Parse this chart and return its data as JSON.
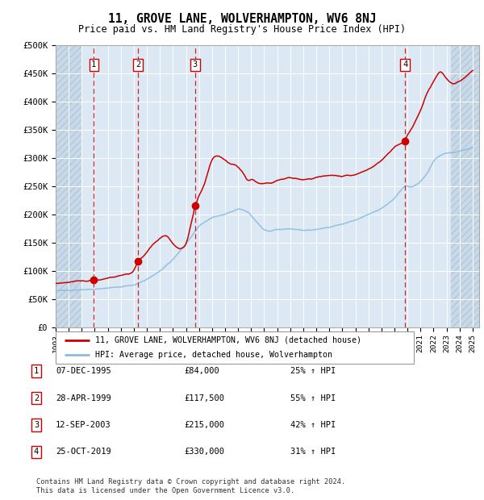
{
  "title": "11, GROVE LANE, WOLVERHAMPTON, WV6 8NJ",
  "subtitle": "Price paid vs. HM Land Registry's House Price Index (HPI)",
  "ylim": [
    0,
    500000
  ],
  "yticks": [
    0,
    50000,
    100000,
    150000,
    200000,
    250000,
    300000,
    350000,
    400000,
    450000,
    500000
  ],
  "ytick_labels": [
    "£0",
    "£50K",
    "£100K",
    "£150K",
    "£200K",
    "£250K",
    "£300K",
    "£350K",
    "£400K",
    "£450K",
    "£500K"
  ],
  "plot_bg_color": "#dce9f5",
  "hatch_bg_color": "#c8d9ea",
  "grid_color": "#ffffff",
  "sale_dates_str": [
    "1995-12-07",
    "1999-04-28",
    "2003-09-12",
    "2019-10-25"
  ],
  "sale_years": [
    1995.93,
    1999.32,
    2003.7,
    2019.81
  ],
  "sale_prices": [
    84000,
    117500,
    215000,
    330000
  ],
  "sale_labels": [
    "1",
    "2",
    "3",
    "4"
  ],
  "legend_property": "11, GROVE LANE, WOLVERHAMPTON, WV6 8NJ (detached house)",
  "legend_hpi": "HPI: Average price, detached house, Wolverhampton",
  "property_color": "#cc0000",
  "hpi_color": "#8bbcde",
  "xlim_start": 1993.0,
  "xlim_end": 2025.5,
  "hatch_left_end": 1995.0,
  "hatch_right_start": 2023.33,
  "footer": "Contains HM Land Registry data © Crown copyright and database right 2024.\nThis data is licensed under the Open Government Licence v3.0.",
  "table_entries": [
    [
      "1",
      "07-DEC-1995",
      "£84,000",
      "25% ↑ HPI"
    ],
    [
      "2",
      "28-APR-1999",
      "£117,500",
      "55% ↑ HPI"
    ],
    [
      "3",
      "12-SEP-2003",
      "£215,000",
      "42% ↑ HPI"
    ],
    [
      "4",
      "25-OCT-2019",
      "£330,000",
      "31% ↑ HPI"
    ]
  ],
  "hpi_waypoints_x": [
    1993.0,
    1994.0,
    1995.0,
    1996.0,
    1997.0,
    1998.0,
    1999.0,
    2000.0,
    2001.0,
    2002.0,
    2003.0,
    2004.0,
    2005.0,
    2006.0,
    2007.0,
    2007.75,
    2008.5,
    2009.0,
    2009.5,
    2010.0,
    2011.0,
    2012.0,
    2013.0,
    2014.0,
    2015.0,
    2016.0,
    2017.0,
    2018.0,
    2019.0,
    2019.81,
    2020.3,
    2021.0,
    2021.5,
    2022.0,
    2022.5,
    2023.0,
    2023.5,
    2024.0,
    2024.5,
    2025.0
  ],
  "hpi_waypoints_y": [
    65000,
    66000,
    67000,
    68000,
    70000,
    72000,
    75000,
    85000,
    100000,
    120000,
    148000,
    180000,
    195000,
    200000,
    210000,
    205000,
    185000,
    172000,
    170000,
    173000,
    175000,
    172000,
    173000,
    178000,
    183000,
    190000,
    200000,
    210000,
    228000,
    252000,
    248000,
    258000,
    272000,
    295000,
    305000,
    308000,
    310000,
    312000,
    315000,
    318000
  ],
  "prop_waypoints_x": [
    1993.0,
    1994.0,
    1995.0,
    1995.93,
    1996.5,
    1997.0,
    1997.5,
    1998.0,
    1998.5,
    1999.0,
    1999.32,
    1999.5,
    2000.0,
    2000.5,
    2001.0,
    2001.5,
    2002.0,
    2002.5,
    2003.0,
    2003.7,
    2004.0,
    2004.3,
    2005.0,
    2005.5,
    2006.0,
    2007.0,
    2007.5,
    2007.75,
    2008.0,
    2008.5,
    2009.0,
    2009.5,
    2010.0,
    2011.0,
    2012.0,
    2013.0,
    2014.0,
    2015.0,
    2016.0,
    2017.0,
    2018.0,
    2019.0,
    2019.81,
    2020.0,
    2020.5,
    2021.0,
    2021.5,
    2022.0,
    2022.5,
    2023.0,
    2023.5,
    2024.0,
    2024.5,
    2025.0
  ],
  "prop_waypoints_y": [
    78000,
    80000,
    82000,
    84000,
    85000,
    88000,
    90000,
    92000,
    95000,
    98000,
    117500,
    122000,
    133000,
    148000,
    158000,
    165000,
    148000,
    138000,
    145000,
    215000,
    235000,
    245000,
    300000,
    305000,
    295000,
    285000,
    270000,
    255000,
    265000,
    255000,
    255000,
    255000,
    260000,
    265000,
    262000,
    265000,
    270000,
    268000,
    270000,
    280000,
    295000,
    320000,
    330000,
    340000,
    360000,
    385000,
    415000,
    435000,
    455000,
    440000,
    430000,
    435000,
    445000,
    455000
  ]
}
